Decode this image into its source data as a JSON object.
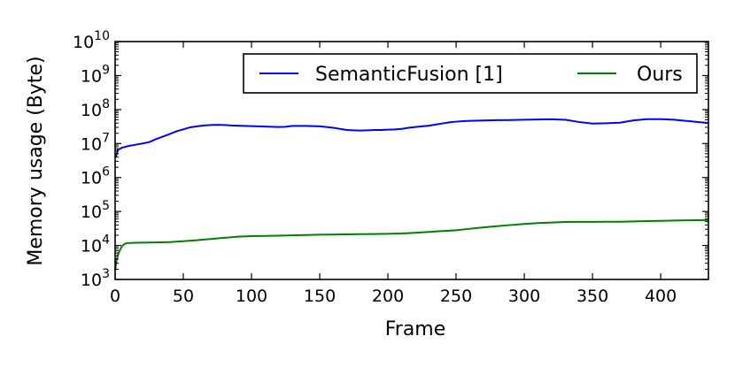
{
  "chart_data": {
    "type": "line",
    "title": "",
    "xlabel": "Frame",
    "ylabel": "Memory usage (Byte)",
    "xlim": [
      0,
      435
    ],
    "ylim": [
      1000,
      10000000000
    ],
    "yscale": "log",
    "grid": false,
    "legend_position": "top-right",
    "x_ticks": [
      0,
      50,
      100,
      150,
      200,
      250,
      300,
      350,
      400
    ],
    "x_tick_labels": [
      "0",
      "50",
      "100",
      "150",
      "200",
      "250",
      "300",
      "350",
      "400"
    ],
    "y_ticks": [
      {
        "value": 1000,
        "base": "10",
        "exp": "3"
      },
      {
        "value": 10000,
        "base": "10",
        "exp": "4"
      },
      {
        "value": 100000,
        "base": "10",
        "exp": "5"
      },
      {
        "value": 1000000,
        "base": "10",
        "exp": "6"
      },
      {
        "value": 10000000,
        "base": "10",
        "exp": "7"
      },
      {
        "value": 100000000,
        "base": "10",
        "exp": "8"
      },
      {
        "value": 1000000000,
        "base": "10",
        "exp": "9"
      },
      {
        "value": 10000000000,
        "base": "10",
        "exp": "10"
      }
    ],
    "series": [
      {
        "name": "SemanticFusion [1]",
        "color": "#0000ff",
        "x": [
          0,
          1,
          2,
          5,
          10,
          15,
          20,
          25,
          30,
          35,
          40,
          45,
          50,
          55,
          60,
          65,
          70,
          75,
          80,
          85,
          90,
          95,
          100,
          105,
          110,
          115,
          120,
          125,
          130,
          135,
          140,
          145,
          150,
          155,
          160,
          165,
          170,
          175,
          180,
          185,
          190,
          195,
          200,
          205,
          210,
          215,
          220,
          225,
          230,
          235,
          240,
          245,
          250,
          255,
          260,
          270,
          280,
          290,
          300,
          310,
          320,
          330,
          340,
          350,
          360,
          370,
          380,
          390,
          400,
          410,
          420,
          435
        ],
        "y": [
          4000000,
          4500000,
          6500000,
          7500000,
          8500000,
          9200000,
          10000000,
          11000000,
          13500000,
          16000000,
          19000000,
          23000000,
          26000000,
          30000000,
          32000000,
          34000000,
          35000000,
          35500000,
          35000000,
          34000000,
          33500000,
          33000000,
          32500000,
          32000000,
          31500000,
          31000000,
          30500000,
          31000000,
          33000000,
          33000000,
          33000000,
          32500000,
          32000000,
          30500000,
          29000000,
          27000000,
          25000000,
          24500000,
          24000000,
          24500000,
          25000000,
          25000000,
          25500000,
          26000000,
          27000000,
          29000000,
          30500000,
          32000000,
          33500000,
          36000000,
          39000000,
          42000000,
          44000000,
          45500000,
          46500000,
          47500000,
          48500000,
          49000000,
          50000000,
          51000000,
          51500000,
          50000000,
          43000000,
          38500000,
          39500000,
          41000000,
          48000000,
          52000000,
          52000000,
          50000000,
          46000000,
          40000000
        ]
      },
      {
        "name": "Ours",
        "color": "#008000",
        "x": [
          0,
          1,
          2,
          3,
          4,
          5,
          6,
          7,
          8,
          10,
          15,
          20,
          30,
          40,
          50,
          60,
          70,
          80,
          90,
          100,
          110,
          120,
          130,
          140,
          150,
          160,
          170,
          180,
          190,
          200,
          210,
          220,
          230,
          240,
          250,
          260,
          270,
          280,
          290,
          300,
          310,
          320,
          330,
          340,
          350,
          360,
          370,
          380,
          390,
          400,
          410,
          420,
          435
        ],
        "y": [
          1800,
          3500,
          5200,
          6500,
          8000,
          9300,
          10400,
          11000,
          11500,
          11800,
          12000,
          12100,
          12300,
          12600,
          13400,
          14300,
          15500,
          16800,
          18200,
          18800,
          19100,
          19400,
          19800,
          20300,
          20700,
          21000,
          21300,
          21600,
          21800,
          22000,
          22500,
          23500,
          25000,
          26500,
          28000,
          31000,
          34000,
          37000,
          40000,
          43000,
          45500,
          47500,
          49000,
          49500,
          49600,
          49700,
          50000,
          51000,
          52000,
          53000,
          54000,
          55000,
          56000
        ]
      }
    ]
  }
}
